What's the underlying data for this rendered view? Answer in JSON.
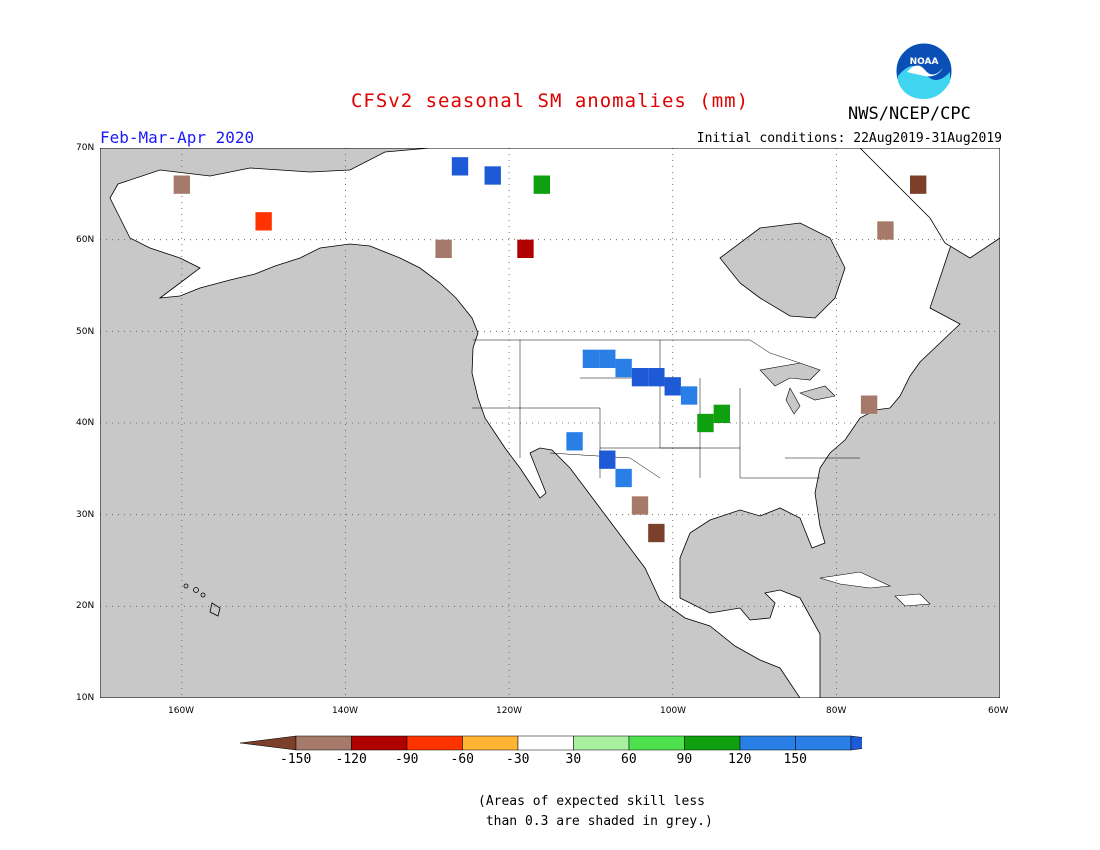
{
  "title": "CFSv2 seasonal SM anomalies (mm)",
  "period": "Feb-Mar-Apr 2020",
  "initial_conditions": "Initial conditions: 22Aug2019-31Aug2019",
  "agency": "NWS/NCEP/CPC",
  "logo": {
    "text": "NOAA",
    "icon": "noaa-logo-icon"
  },
  "map": {
    "lat_labels": [
      "70N",
      "60N",
      "50N",
      "40N",
      "30N",
      "20N",
      "10N"
    ],
    "lon_labels": [
      "160W",
      "140W",
      "120W",
      "100W",
      "80W",
      "60W"
    ],
    "extent": {
      "lon": [
        -170,
        -60
      ],
      "lat": [
        10,
        70
      ]
    },
    "grid": "dotted",
    "no_skill_color": "#c8c8c8",
    "anomaly_cells": [
      {
        "lon": -110,
        "lat": 47,
        "v": 120
      },
      {
        "lon": -108,
        "lat": 47,
        "v": 120
      },
      {
        "lon": -106,
        "lat": 46,
        "v": 120
      },
      {
        "lon": -104,
        "lat": 45,
        "v": 150
      },
      {
        "lon": -102,
        "lat": 45,
        "v": 150
      },
      {
        "lon": -100,
        "lat": 44,
        "v": 150
      },
      {
        "lon": -98,
        "lat": 43,
        "v": 120
      },
      {
        "lon": -112,
        "lat": 38,
        "v": 120
      },
      {
        "lon": -108,
        "lat": 36,
        "v": 150
      },
      {
        "lon": -106,
        "lat": 34,
        "v": 120
      },
      {
        "lon": -96,
        "lat": 40,
        "v": 90
      },
      {
        "lon": -94,
        "lat": 41,
        "v": 90
      },
      {
        "lon": -104,
        "lat": 31,
        "v": -120
      },
      {
        "lon": -102,
        "lat": 28,
        "v": -150
      },
      {
        "lon": -76,
        "lat": 42,
        "v": -120
      },
      {
        "lon": -126,
        "lat": 68,
        "v": 150
      },
      {
        "lon": -122,
        "lat": 67,
        "v": 150
      },
      {
        "lon": -116,
        "lat": 66,
        "v": 90
      },
      {
        "lon": -128,
        "lat": 59,
        "v": -120
      },
      {
        "lon": -118,
        "lat": 59,
        "v": -90
      },
      {
        "lon": -150,
        "lat": 62,
        "v": -60
      },
      {
        "lon": -160,
        "lat": 66,
        "v": -120
      },
      {
        "lon": -70,
        "lat": 66,
        "v": -150
      },
      {
        "lon": -74,
        "lat": 61,
        "v": -120
      }
    ]
  },
  "colorbar": {
    "colors": [
      "#7b3f2a",
      "#a67a6a",
      "#b00000",
      "#ff3300",
      "#ffb433",
      "#ffffff",
      "#a8f0a0",
      "#4de24d",
      "#0fa00f",
      "#2a7fe6",
      "#1e5ad6"
    ],
    "labels": [
      "-150",
      "-120",
      "-90",
      "-60",
      "-30",
      "30",
      "60",
      "90",
      "120",
      "150"
    ]
  },
  "footnote": "(Areas of expected skill less\n than 0.3 are shaded in grey.)"
}
